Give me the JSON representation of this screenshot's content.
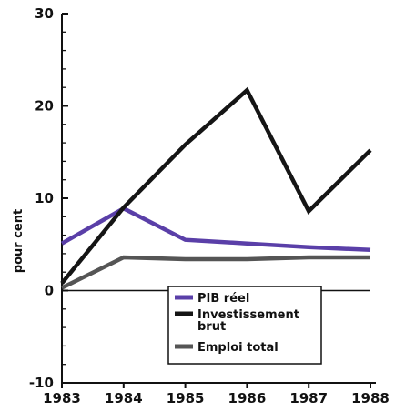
{
  "chart_data": {
    "type": "line",
    "x": [
      "1983",
      "1984",
      "1985",
      "1986",
      "1987",
      "1988"
    ],
    "ylabel": "pour cent",
    "xlabel": "",
    "ylim": [
      -10,
      30
    ],
    "yticks": [
      "30",
      "20",
      "10",
      "0",
      "-10"
    ],
    "grid": false,
    "legend_position": "bottom-center",
    "series": [
      {
        "name": "PIB réel",
        "color": "#5a3fa8",
        "values": [
          5.1,
          8.9,
          5.5,
          5.1,
          4.7,
          4.4
        ]
      },
      {
        "name": "Investissement brut",
        "color": "#151515",
        "values": [
          0.8,
          9.0,
          15.8,
          21.7,
          8.6,
          15.2
        ]
      },
      {
        "name": "Emploi total",
        "color": "#555555",
        "values": [
          0.3,
          3.6,
          3.4,
          3.4,
          3.6,
          3.6
        ]
      }
    ]
  }
}
